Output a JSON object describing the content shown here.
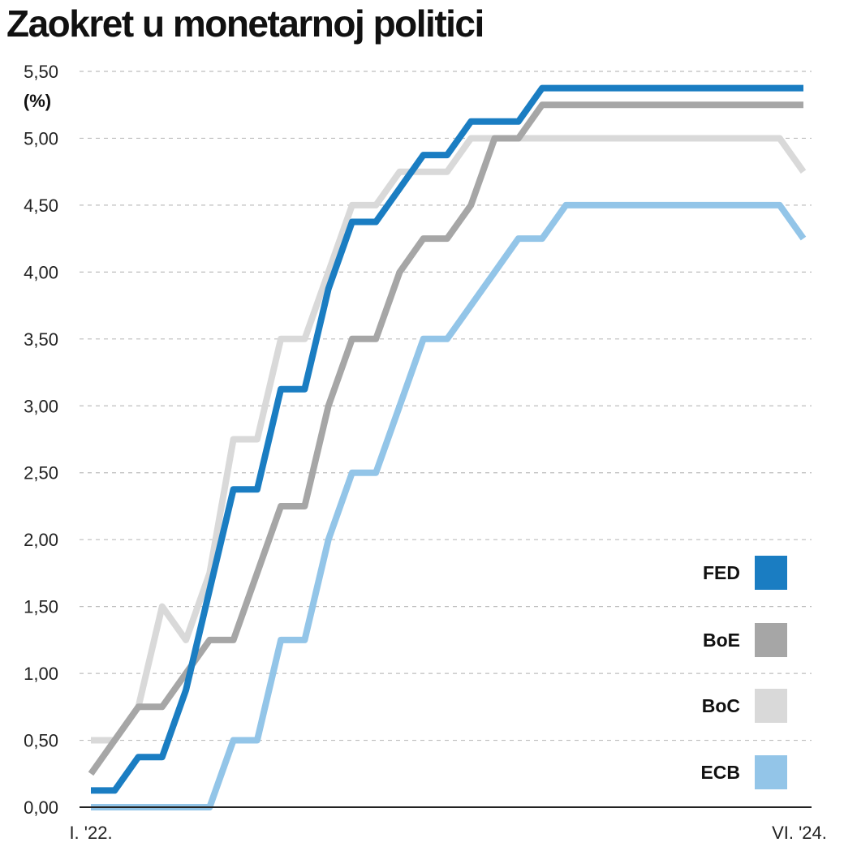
{
  "chart_data": {
    "type": "line",
    "title": "Zaokret u monetarnoj politici",
    "ylabel": "(%)",
    "xlabel": "",
    "ylim": [
      0,
      5.5
    ],
    "yticks": [
      "0,00",
      "0,50",
      "1,00",
      "1,50",
      "2,00",
      "2,50",
      "3,00",
      "3,50",
      "4,00",
      "4,50",
      "5,00",
      "5,50"
    ],
    "ytick_values": [
      0,
      0.5,
      1,
      1.5,
      2,
      2.5,
      3,
      3.5,
      4,
      4.5,
      5,
      5.5
    ],
    "x_start_label": "I. '22.",
    "x_end_label": "VI. '24.",
    "x_range_months": [
      0,
      29
    ],
    "legend_position": "bottom-right",
    "grid": true,
    "series": [
      {
        "name": "BoC",
        "color": "#d9d9d9",
        "points": [
          [
            0,
            0.5
          ],
          [
            1,
            0.5
          ],
          [
            2,
            0.75
          ],
          [
            3,
            1.5
          ],
          [
            4,
            1.25
          ],
          [
            5,
            1.75
          ],
          [
            6,
            2.75
          ],
          [
            7,
            2.75
          ],
          [
            8,
            3.5
          ],
          [
            9,
            3.5
          ],
          [
            10,
            4.0
          ],
          [
            11,
            4.5
          ],
          [
            12,
            4.5
          ],
          [
            13,
            4.75
          ],
          [
            14,
            4.75
          ],
          [
            15,
            4.75
          ],
          [
            16,
            5.0
          ],
          [
            17,
            5.0
          ],
          [
            29,
            5.0
          ],
          [
            30,
            4.75
          ]
        ]
      },
      {
        "name": "BoE",
        "color": "#a6a6a6",
        "points": [
          [
            0,
            0.25
          ],
          [
            2,
            0.75
          ],
          [
            3,
            0.75
          ],
          [
            4,
            1.0
          ],
          [
            5,
            1.25
          ],
          [
            6,
            1.25
          ],
          [
            8,
            2.25
          ],
          [
            9,
            2.25
          ],
          [
            10,
            3.0
          ],
          [
            11,
            3.5
          ],
          [
            12,
            3.5
          ],
          [
            13,
            4.0
          ],
          [
            14,
            4.25
          ],
          [
            15,
            4.25
          ],
          [
            16,
            4.5
          ],
          [
            17,
            5.0
          ],
          [
            18,
            5.0
          ],
          [
            19,
            5.25
          ],
          [
            30,
            5.25
          ]
        ]
      },
      {
        "name": "FED",
        "color": "#1a7dc2",
        "points": [
          [
            0,
            0.125
          ],
          [
            1,
            0.125
          ],
          [
            2,
            0.375
          ],
          [
            3,
            0.375
          ],
          [
            4,
            0.875
          ],
          [
            5,
            1.625
          ],
          [
            6,
            2.375
          ],
          [
            7,
            2.375
          ],
          [
            8,
            3.125
          ],
          [
            9,
            3.125
          ],
          [
            10,
            3.875
          ],
          [
            11,
            4.375
          ],
          [
            12,
            4.375
          ],
          [
            13,
            4.625
          ],
          [
            14,
            4.875
          ],
          [
            15,
            4.875
          ],
          [
            16,
            5.125
          ],
          [
            17,
            5.125
          ],
          [
            18,
            5.125
          ],
          [
            19,
            5.375
          ],
          [
            30,
            5.375
          ]
        ]
      },
      {
        "name": "ECB",
        "color": "#93c5e8",
        "points": [
          [
            0,
            0
          ],
          [
            5,
            0
          ],
          [
            6,
            0.5
          ],
          [
            7,
            0.5
          ],
          [
            8,
            1.25
          ],
          [
            9,
            1.25
          ],
          [
            10,
            2.0
          ],
          [
            11,
            2.5
          ],
          [
            12,
            2.5
          ],
          [
            13,
            3.0
          ],
          [
            14,
            3.5
          ],
          [
            15,
            3.5
          ],
          [
            16,
            3.75
          ],
          [
            17,
            4.0
          ],
          [
            18,
            4.25
          ],
          [
            19,
            4.25
          ],
          [
            20,
            4.5
          ],
          [
            29,
            4.5
          ],
          [
            30,
            4.25
          ]
        ]
      }
    ],
    "legend": [
      {
        "name": "FED",
        "color": "#1a7dc2"
      },
      {
        "name": "BoE",
        "color": "#a6a6a6"
      },
      {
        "name": "BoC",
        "color": "#d9d9d9"
      },
      {
        "name": "ECB",
        "color": "#93c5e8"
      }
    ]
  }
}
